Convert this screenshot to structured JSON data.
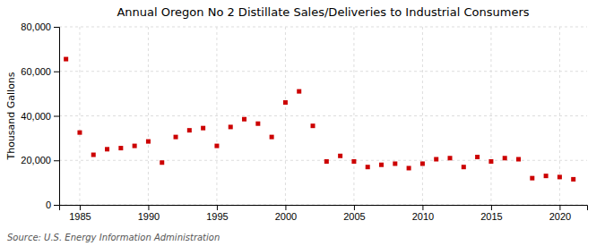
{
  "chart_data": {
    "type": "scatter",
    "title": "Annual Oregon No 2 Distillate Sales/Deliveries to Industrial Consumers",
    "ylabel": "Thousand Gallons",
    "source": "Source: U.S. Energy Information Administration",
    "x": [
      1984,
      1985,
      1986,
      1987,
      1988,
      1989,
      1990,
      1991,
      1992,
      1993,
      1994,
      1995,
      1996,
      1997,
      1998,
      1999,
      2000,
      2001,
      2002,
      2003,
      2004,
      2005,
      2006,
      2007,
      2008,
      2009,
      2010,
      2011,
      2012,
      2013,
      2014,
      2015,
      2016,
      2017,
      2018,
      2019,
      2020,
      2021
    ],
    "values": [
      65500,
      32500,
      22500,
      25000,
      25500,
      26500,
      28500,
      19000,
      30500,
      33500,
      34500,
      26500,
      35000,
      38500,
      36500,
      30500,
      46000,
      51000,
      35500,
      19500,
      22000,
      19500,
      17000,
      18000,
      18500,
      16500,
      18500,
      20500,
      21000,
      17000,
      21500,
      19500,
      21000,
      20500,
      12000,
      13000,
      12500,
      11500
    ],
    "color": "#CC0000",
    "marker": "square",
    "xlim": [
      1983.5,
      2022
    ],
    "ylim": [
      0,
      80000
    ],
    "xticks": [
      1985,
      1990,
      1995,
      2000,
      2005,
      2010,
      2015,
      2020
    ],
    "yticks": [
      0,
      {
        "value": 20000,
        "label": "20,000"
      },
      {
        "value": 40000,
        "label": "40,000"
      },
      {
        "value": 60000,
        "label": "60,000"
      },
      {
        "value": 80000,
        "label": "80,000"
      }
    ],
    "grid": true
  }
}
